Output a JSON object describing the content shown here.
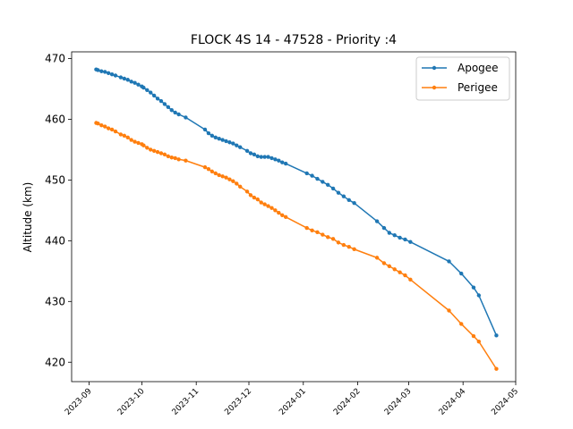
{
  "chart_data": {
    "type": "line",
    "title": "FLOCK 4S 14 - 47528 - Priority :4",
    "xlabel": "",
    "ylabel": "Altitude (km)",
    "x_type": "date",
    "xlim": [
      "2023-08-22",
      "2024-05-01"
    ],
    "ylim": [
      416.8,
      471.1
    ],
    "x_ticks": [
      "2023-09",
      "2023-10",
      "2023-11",
      "2023-12",
      "2024-01",
      "2024-02",
      "2024-03",
      "2024-04",
      "2024-05"
    ],
    "y_ticks": [
      420,
      430,
      440,
      450,
      460,
      470
    ],
    "grid": false,
    "legend": "upper right",
    "series": [
      {
        "name": "Apogee",
        "color": "#1f77b4",
        "marker": "o",
        "points": [
          [
            "2023-09-05",
            468.2
          ],
          [
            "2023-09-06",
            468.1
          ],
          [
            "2023-09-08",
            467.9
          ],
          [
            "2023-09-10",
            467.8
          ],
          [
            "2023-09-12",
            467.6
          ],
          [
            "2023-09-14",
            467.4
          ],
          [
            "2023-09-16",
            467.2
          ],
          [
            "2023-09-19",
            466.9
          ],
          [
            "2023-09-21",
            466.7
          ],
          [
            "2023-09-23",
            466.5
          ],
          [
            "2023-09-25",
            466.2
          ],
          [
            "2023-09-27",
            466.0
          ],
          [
            "2023-09-29",
            465.7
          ],
          [
            "2023-10-01",
            465.4
          ],
          [
            "2023-10-02",
            465.2
          ],
          [
            "2023-10-04",
            464.8
          ],
          [
            "2023-10-06",
            464.4
          ],
          [
            "2023-10-08",
            463.9
          ],
          [
            "2023-10-10",
            463.4
          ],
          [
            "2023-10-12",
            463.0
          ],
          [
            "2023-10-14",
            462.5
          ],
          [
            "2023-10-16",
            462.0
          ],
          [
            "2023-10-18",
            461.5
          ],
          [
            "2023-10-20",
            461.1
          ],
          [
            "2023-10-22",
            460.8
          ],
          [
            "2023-10-26",
            460.3
          ],
          [
            "2023-11-06",
            458.3
          ],
          [
            "2023-11-08",
            457.7
          ],
          [
            "2023-11-10",
            457.3
          ],
          [
            "2023-11-12",
            457.0
          ],
          [
            "2023-11-14",
            456.8
          ],
          [
            "2023-11-16",
            456.6
          ],
          [
            "2023-11-18",
            456.4
          ],
          [
            "2023-11-20",
            456.2
          ],
          [
            "2023-11-22",
            456.0
          ],
          [
            "2023-11-24",
            455.7
          ],
          [
            "2023-11-26",
            455.4
          ],
          [
            "2023-11-30",
            454.8
          ],
          [
            "2023-12-02",
            454.4
          ],
          [
            "2023-12-04",
            454.2
          ],
          [
            "2023-12-06",
            453.9
          ],
          [
            "2023-12-08",
            453.8
          ],
          [
            "2023-12-10",
            453.8
          ],
          [
            "2023-12-12",
            453.8
          ],
          [
            "2023-12-14",
            453.6
          ],
          [
            "2023-12-16",
            453.4
          ],
          [
            "2023-12-18",
            453.2
          ],
          [
            "2023-12-20",
            452.9
          ],
          [
            "2023-12-22",
            452.7
          ],
          [
            "2024-01-03",
            451.1
          ],
          [
            "2024-01-06",
            450.7
          ],
          [
            "2024-01-09",
            450.2
          ],
          [
            "2024-01-12",
            449.7
          ],
          [
            "2024-01-15",
            449.2
          ],
          [
            "2024-01-18",
            448.6
          ],
          [
            "2024-01-21",
            447.9
          ],
          [
            "2024-01-24",
            447.3
          ],
          [
            "2024-01-27",
            446.7
          ],
          [
            "2024-01-30",
            446.2
          ],
          [
            "2024-02-12",
            443.2
          ],
          [
            "2024-02-16",
            442.1
          ],
          [
            "2024-02-19",
            441.3
          ],
          [
            "2024-02-22",
            440.9
          ],
          [
            "2024-02-25",
            440.5
          ],
          [
            "2024-02-28",
            440.2
          ],
          [
            "2024-03-02",
            439.8
          ],
          [
            "2024-03-24",
            436.6
          ],
          [
            "2024-03-31",
            434.6
          ],
          [
            "2024-04-07",
            432.3
          ],
          [
            "2024-04-10",
            431.0
          ],
          [
            "2024-04-20",
            424.4
          ]
        ]
      },
      {
        "name": "Perigee",
        "color": "#ff7f0e",
        "marker": "o",
        "points": [
          [
            "2023-09-05",
            459.4
          ],
          [
            "2023-09-06",
            459.3
          ],
          [
            "2023-09-08",
            459.0
          ],
          [
            "2023-09-10",
            458.8
          ],
          [
            "2023-09-12",
            458.5
          ],
          [
            "2023-09-14",
            458.3
          ],
          [
            "2023-09-16",
            458.0
          ],
          [
            "2023-09-19",
            457.5
          ],
          [
            "2023-09-21",
            457.3
          ],
          [
            "2023-09-23",
            457.0
          ],
          [
            "2023-09-25",
            456.6
          ],
          [
            "2023-09-27",
            456.3
          ],
          [
            "2023-09-29",
            456.1
          ],
          [
            "2023-10-01",
            455.9
          ],
          [
            "2023-10-02",
            455.7
          ],
          [
            "2023-10-04",
            455.3
          ],
          [
            "2023-10-06",
            455.0
          ],
          [
            "2023-10-08",
            454.8
          ],
          [
            "2023-10-10",
            454.6
          ],
          [
            "2023-10-12",
            454.4
          ],
          [
            "2023-10-14",
            454.2
          ],
          [
            "2023-10-16",
            453.9
          ],
          [
            "2023-10-18",
            453.7
          ],
          [
            "2023-10-20",
            453.6
          ],
          [
            "2023-10-22",
            453.4
          ],
          [
            "2023-10-26",
            453.2
          ],
          [
            "2023-11-06",
            452.1
          ],
          [
            "2023-11-08",
            451.8
          ],
          [
            "2023-11-10",
            451.4
          ],
          [
            "2023-11-12",
            451.1
          ],
          [
            "2023-11-14",
            450.8
          ],
          [
            "2023-11-16",
            450.6
          ],
          [
            "2023-11-18",
            450.4
          ],
          [
            "2023-11-20",
            450.1
          ],
          [
            "2023-11-22",
            449.8
          ],
          [
            "2023-11-24",
            449.4
          ],
          [
            "2023-11-26",
            448.9
          ],
          [
            "2023-11-30",
            448.1
          ],
          [
            "2023-12-02",
            447.5
          ],
          [
            "2023-12-04",
            447.1
          ],
          [
            "2023-12-06",
            446.8
          ],
          [
            "2023-12-08",
            446.3
          ],
          [
            "2023-12-10",
            446.0
          ],
          [
            "2023-12-12",
            445.7
          ],
          [
            "2023-12-14",
            445.4
          ],
          [
            "2023-12-16",
            445.0
          ],
          [
            "2023-12-18",
            444.6
          ],
          [
            "2023-12-20",
            444.2
          ],
          [
            "2023-12-22",
            443.9
          ],
          [
            "2024-01-03",
            442.1
          ],
          [
            "2024-01-06",
            441.7
          ],
          [
            "2024-01-09",
            441.4
          ],
          [
            "2024-01-12",
            441.0
          ],
          [
            "2024-01-15",
            440.6
          ],
          [
            "2024-01-18",
            440.3
          ],
          [
            "2024-01-21",
            439.7
          ],
          [
            "2024-01-24",
            439.3
          ],
          [
            "2024-01-27",
            439.0
          ],
          [
            "2024-01-30",
            438.6
          ],
          [
            "2024-02-12",
            437.2
          ],
          [
            "2024-02-16",
            436.3
          ],
          [
            "2024-02-19",
            435.8
          ],
          [
            "2024-02-22",
            435.3
          ],
          [
            "2024-02-25",
            434.8
          ],
          [
            "2024-02-28",
            434.3
          ],
          [
            "2024-03-02",
            433.6
          ],
          [
            "2024-03-24",
            428.5
          ],
          [
            "2024-03-31",
            426.3
          ],
          [
            "2024-04-07",
            424.3
          ],
          [
            "2024-04-10",
            423.4
          ],
          [
            "2024-04-20",
            418.9
          ]
        ]
      }
    ]
  }
}
